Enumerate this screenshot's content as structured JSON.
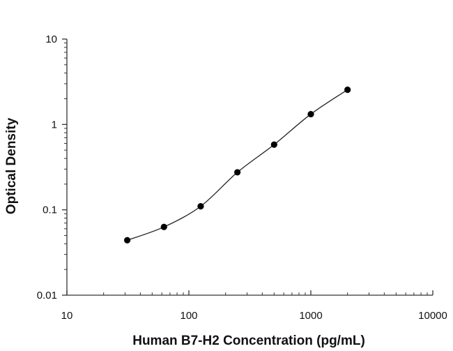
{
  "chart_data": {
    "type": "scatter",
    "xlabel": "Human B7-H2 Concentration (pg/mL)",
    "ylabel": "Optical Density",
    "x_scale": "log",
    "y_scale": "log",
    "xlim": [
      10,
      10000
    ],
    "ylim": [
      0.01,
      10
    ],
    "x_ticks": [
      10,
      100,
      1000,
      10000
    ],
    "x_tick_labels": [
      "10",
      "100",
      "1000",
      "10000"
    ],
    "y_ticks": [
      0.01,
      0.1,
      1,
      10
    ],
    "y_tick_labels": [
      "0.01",
      "0.1",
      "1",
      "10"
    ],
    "grid": false,
    "legend": "none",
    "fit_line": true,
    "series": [
      {
        "x": [
          31.25,
          62.5,
          125,
          250,
          500,
          1000,
          2000
        ],
        "y": [
          0.044,
          0.063,
          0.11,
          0.275,
          0.58,
          1.32,
          2.55
        ]
      }
    ],
    "marker_color": "#000000"
  }
}
